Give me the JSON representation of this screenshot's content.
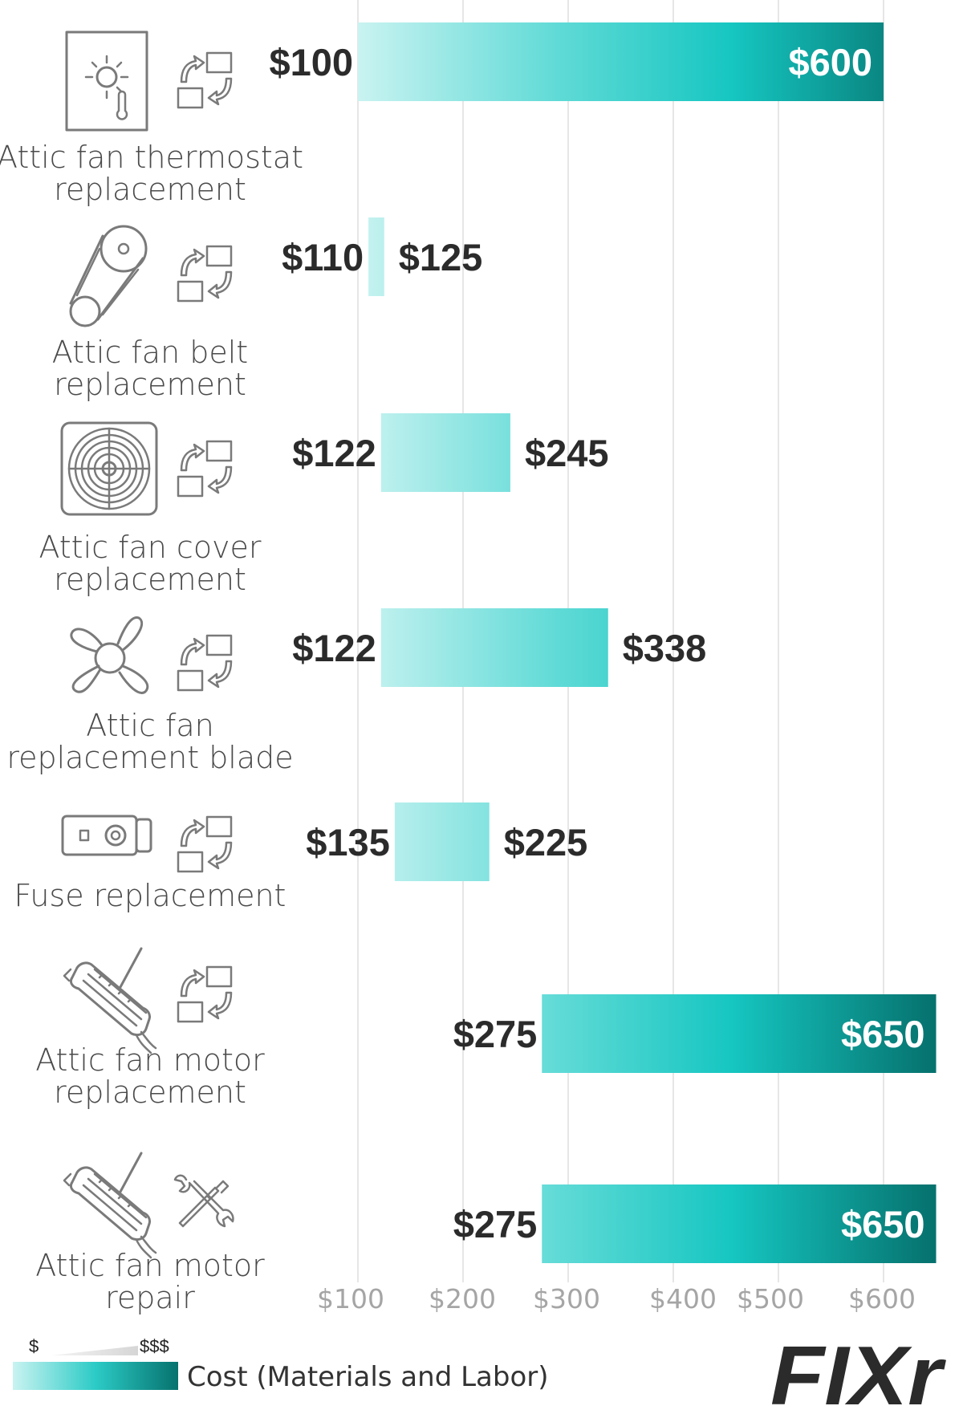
{
  "chart_data": {
    "type": "bar",
    "orientation": "horizontal",
    "bar_style": "floating-range",
    "categories": [
      [
        "Attic fan thermostat",
        "replacement"
      ],
      [
        "Attic fan belt",
        "replacement"
      ],
      [
        "Attic fan cover",
        "replacement"
      ],
      [
        "Attic fan",
        "replacement blade"
      ],
      [
        "Fuse replacement"
      ],
      [
        "Attic fan motor",
        "replacement"
      ],
      [
        "Attic fan motor",
        "repair"
      ]
    ],
    "icons": [
      "thermostat-icon",
      "belt-pulley-icon",
      "fan-cover-icon",
      "fan-blade-icon",
      "fuse-icon",
      "motor-icon",
      "motor-icon"
    ],
    "action_icons": [
      "replace-arrows-icon",
      "replace-arrows-icon",
      "replace-arrows-icon",
      "replace-arrows-icon",
      "replace-arrows-icon",
      "replace-arrows-icon",
      "wrench-screwdriver-icon"
    ],
    "low": [
      100,
      110,
      122,
      122,
      135,
      275,
      275
    ],
    "high": [
      600,
      125,
      245,
      338,
      225,
      650,
      650
    ],
    "low_labels": [
      "$100",
      "$110",
      "$122",
      "$122",
      "$135",
      "$275",
      "$275"
    ],
    "high_labels": [
      "$600",
      "$125",
      "$245",
      "$338",
      "$225",
      "$650",
      "$650"
    ],
    "x_ticks": [
      100,
      200,
      300,
      400,
      500,
      600
    ],
    "x_tick_labels": [
      "$100",
      "$200",
      "$300",
      "$400",
      "$500",
      "$600"
    ],
    "xlim": [
      100,
      650
    ],
    "grid": true,
    "legend": {
      "position": "bottom-left",
      "low_marker": "$",
      "high_marker": "$$$",
      "label": "Cost (Materials and Labor)"
    },
    "colors": {
      "bar_light": "#c4f1ef",
      "bar_mid": "#47d4d0",
      "bar_dark": "#077873",
      "grid": "#e6e6e6"
    }
  },
  "branding": {
    "logo_text": "FIXr"
  }
}
